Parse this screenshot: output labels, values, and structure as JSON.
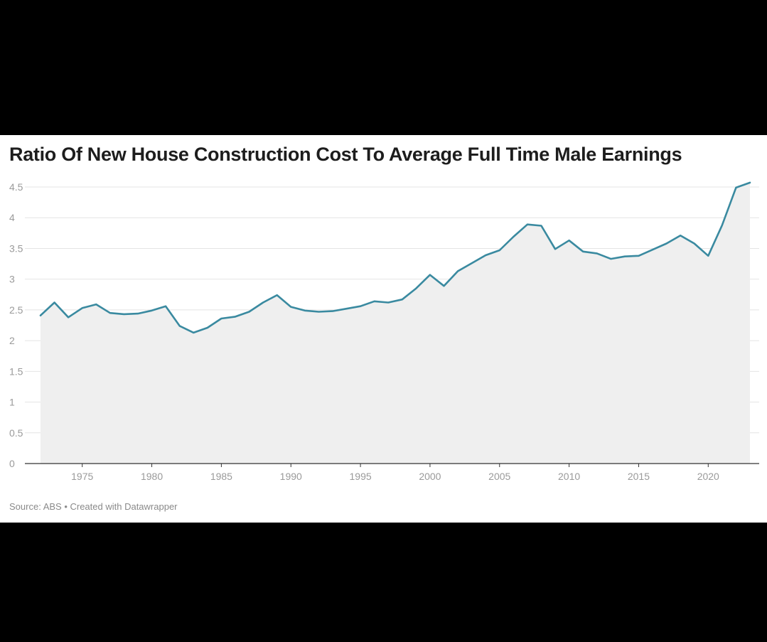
{
  "chart_data": {
    "type": "area",
    "title": "Ratio Of New House Construction Cost To Average Full Time Male Earnings",
    "xlabel": "",
    "ylabel": "",
    "xlim": [
      1972,
      2023
    ],
    "ylim": [
      0,
      4.5
    ],
    "y_ticks": [
      0,
      0.5,
      1,
      1.5,
      2,
      2.5,
      3,
      3.5,
      4,
      4.5
    ],
    "y_tick_labels": [
      "0",
      "0.5",
      "1",
      "1.5",
      "2",
      "2.5",
      "3",
      "3.5",
      "4",
      "4.5"
    ],
    "x_ticks": [
      1975,
      1980,
      1985,
      1990,
      1995,
      2000,
      2005,
      2010,
      2015,
      2020
    ],
    "x_tick_labels": [
      "1975",
      "1980",
      "1985",
      "1990",
      "1995",
      "2000",
      "2005",
      "2010",
      "2015",
      "2020"
    ],
    "grid": true,
    "colors": {
      "line": "#3a8aa0",
      "area": "#efefef",
      "grid": "#e4e4e4",
      "axis": "#333333"
    },
    "series": [
      {
        "x": [
          1972,
          1973,
          1974,
          1975,
          1976,
          1977,
          1978,
          1979,
          1980,
          1981,
          1982,
          1983,
          1984,
          1985,
          1986,
          1987,
          1988,
          1989,
          1990,
          1991,
          1992,
          1993,
          1994,
          1995,
          1996,
          1997,
          1998,
          1999,
          2000,
          2001,
          2002,
          2003,
          2004,
          2005,
          2006,
          2007,
          2008,
          2009,
          2010,
          2011,
          2012,
          2013,
          2014,
          2015,
          2016,
          2017,
          2018,
          2019,
          2020,
          2021,
          2022,
          2023
        ],
        "values": [
          2.41,
          2.62,
          2.38,
          2.53,
          2.59,
          2.45,
          2.43,
          2.44,
          2.49,
          2.56,
          2.24,
          2.13,
          2.21,
          2.36,
          2.39,
          2.47,
          2.62,
          2.74,
          2.55,
          2.49,
          2.47,
          2.48,
          2.52,
          2.56,
          2.64,
          2.62,
          2.67,
          2.85,
          3.07,
          2.89,
          3.13,
          3.26,
          3.39,
          3.47,
          3.69,
          3.89,
          3.87,
          3.49,
          3.63,
          3.45,
          3.42,
          3.33,
          3.37,
          3.38,
          3.48,
          3.58,
          3.71,
          3.58,
          3.38,
          3.88,
          4.49,
          4.57
        ]
      }
    ]
  },
  "footer": {
    "source": "Source: ABS • Created with Datawrapper"
  }
}
